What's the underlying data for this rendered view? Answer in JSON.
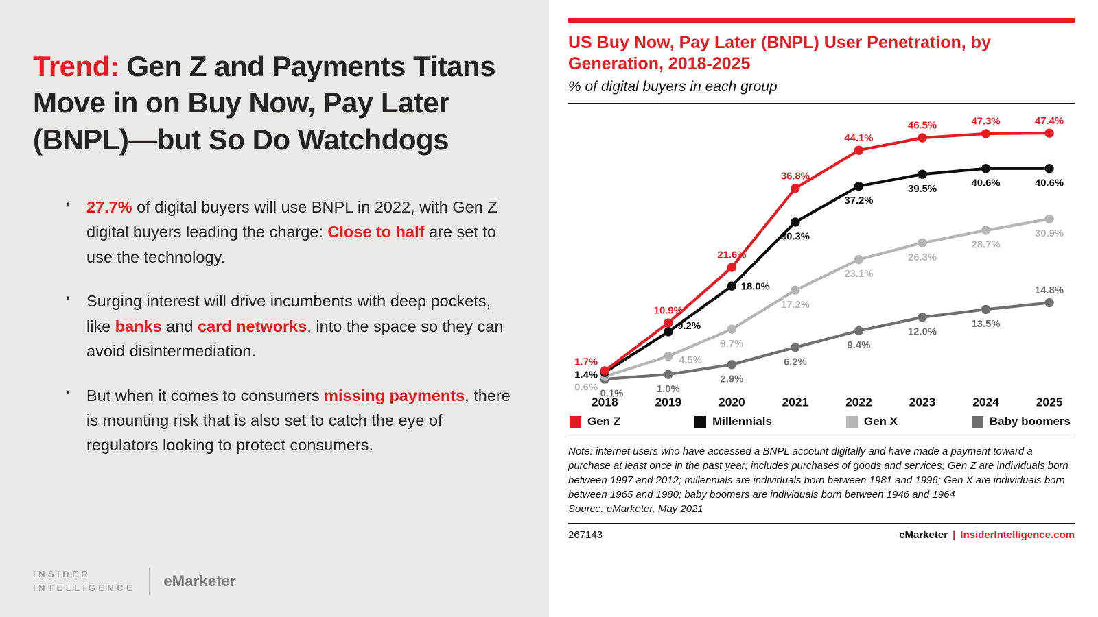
{
  "colors": {
    "accent": "#e31b23",
    "millennials_black": "#0d0d0d",
    "genx_gray": "#b5b5b5",
    "boomers_gray": "#6f6f6f",
    "left_panel_bg": "#eae9e6"
  },
  "left_panel": {
    "title_accent": "Trend:",
    "title_rest": " Gen Z and Payments Titans Move in on Buy Now, Pay Later (BNPL)—but So Do Watchdogs",
    "bullets": [
      {
        "segments": [
          {
            "text": "27.7%",
            "style": "accent"
          },
          {
            "text": " of digital buyers will use BNPL in 2022, with Gen Z digital buyers leading the charge: ",
            "style": "plain"
          },
          {
            "text": "Close to half",
            "style": "accent"
          },
          {
            "text": " are set to use the technology.",
            "style": "plain"
          }
        ]
      },
      {
        "segments": [
          {
            "text": "Surging interest will drive incumbents with deep pockets, like ",
            "style": "plain"
          },
          {
            "text": "banks",
            "style": "accent"
          },
          {
            "text": " and ",
            "style": "plain"
          },
          {
            "text": "card networks",
            "style": "accent"
          },
          {
            "text": ", into the space so they can avoid disintermediation.",
            "style": "plain"
          }
        ]
      },
      {
        "segments": [
          {
            "text": "But when it comes to consumers ",
            "style": "plain"
          },
          {
            "text": "missing payments",
            "style": "accent"
          },
          {
            "text": ", there is mounting risk that is also set to catch the eye of regulators looking to protect consumers.",
            "style": "plain"
          }
        ]
      }
    ],
    "brand": {
      "insider_line1": "INSIDER",
      "insider_line2": "INTELLIGENCE",
      "emarketer": "eMarketer"
    }
  },
  "chart_panel": {
    "title": "US Buy Now, Pay Later (BNPL) User Penetration, by Generation, 2018-2025",
    "subtitle": "% of digital buyers in each group",
    "note": "Note: internet users who have accessed a BNPL account digitally and have made a payment toward a purchase at least once in the past year; includes purchases of goods and services; Gen Z are individuals born between 1997 and 2012; millennials are individuals born between 1981 and 1996; Gen X are individuals born between 1965 and 1980; baby boomers are individuals born between 1946 and 1964",
    "source": "Source: eMarketer, May 2021",
    "chart_id": "267143",
    "footer_brand": "eMarketer",
    "footer_sep": "|",
    "footer_site": "InsiderIntelligence.com"
  },
  "chart_data": {
    "type": "line",
    "title": "US Buy Now, Pay Later (BNPL) User Penetration, by Generation, 2018-2025",
    "subtitle": "% of digital buyers in each group",
    "categories": [
      "2018",
      "2019",
      "2020",
      "2021",
      "2022",
      "2023",
      "2024",
      "2025"
    ],
    "series": [
      {
        "name": "Gen Z",
        "color": "#e31b23",
        "values": [
          1.7,
          10.9,
          21.6,
          36.8,
          44.1,
          46.5,
          47.3,
          47.4
        ]
      },
      {
        "name": "Millennials",
        "color": "#0d0d0d",
        "values": [
          1.4,
          9.2,
          18.0,
          30.3,
          37.2,
          39.5,
          40.6,
          40.6
        ]
      },
      {
        "name": "Gen X",
        "color": "#b5b5b5",
        "values": [
          0.6,
          4.5,
          9.7,
          17.2,
          23.1,
          26.3,
          28.7,
          30.9
        ]
      },
      {
        "name": "Baby boomers",
        "color": "#6f6f6f",
        "values": [
          0.1,
          1.0,
          2.9,
          6.2,
          9.4,
          12.0,
          13.5,
          14.8
        ]
      }
    ],
    "ylim": [
      0,
      50
    ],
    "xlabel": "",
    "ylabel": "% of digital buyers",
    "grid": false,
    "legend_position": "bottom",
    "data_labels": true,
    "value_format": "one_decimal_percent"
  }
}
